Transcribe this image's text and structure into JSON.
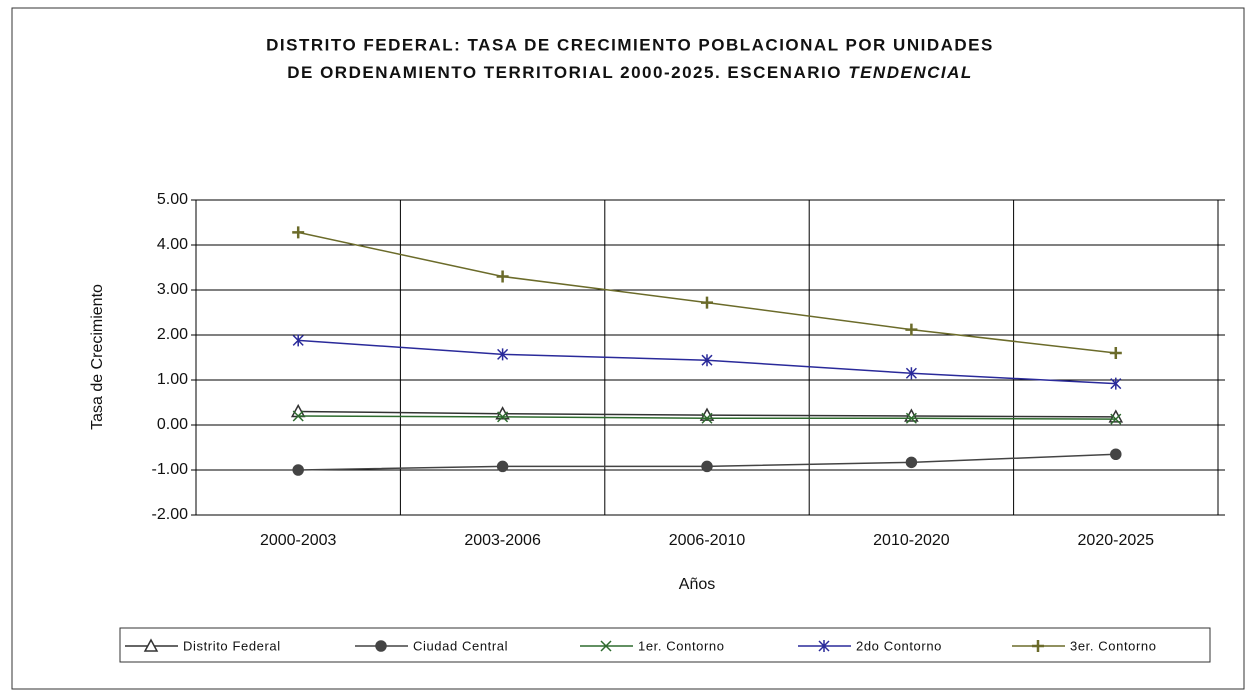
{
  "chart_data": {
    "type": "line",
    "title_lines": [
      "DISTRITO FEDERAL: TASA DE  CRECIMIENTO POBLACIONAL POR UNIDADES",
      "DE ORDENAMIENTO TERRITORIAL  2000-2025. ESCENARIO"
    ],
    "title_italic": "TENDENCIAL",
    "x_label": "Años",
    "y_label": "Tasa de Crecimiento",
    "categories": [
      "2000-2003",
      "2003-2006",
      "2006-2010",
      "2010-2020",
      "2020-2025"
    ],
    "ylim": [
      -2,
      5
    ],
    "yticks": [
      {
        "value": 5,
        "label": "5.00"
      },
      {
        "value": 4,
        "label": "4.00"
      },
      {
        "value": 3,
        "label": "3.00"
      },
      {
        "value": 2,
        "label": "2.00"
      },
      {
        "value": 1,
        "label": "1.00"
      },
      {
        "value": 0,
        "label": "0.00"
      },
      {
        "value": -1,
        "label": "-1.00"
      },
      {
        "value": -2,
        "label": "-2.00"
      }
    ],
    "grid": true,
    "series": [
      {
        "name": "Distrito Federal",
        "color": "#333333",
        "marker": "triangle",
        "values": [
          0.3,
          0.25,
          0.22,
          0.2,
          0.18
        ]
      },
      {
        "name": "Ciudad Central",
        "color": "#444444",
        "marker": "circle",
        "values": [
          -1.0,
          -0.92,
          -0.92,
          -0.83,
          -0.65
        ]
      },
      {
        "name": "1er. Contorno",
        "color": "#2e6b2e",
        "marker": "x",
        "values": [
          0.2,
          0.18,
          0.15,
          0.15,
          0.13
        ]
      },
      {
        "name": "2do Contorno",
        "color": "#2a2a9a",
        "marker": "star",
        "values": [
          1.88,
          1.57,
          1.44,
          1.15,
          0.92
        ]
      },
      {
        "name": "3er. Contorno",
        "color": "#6b6b2a",
        "marker": "plus",
        "values": [
          4.28,
          3.3,
          2.72,
          2.12,
          1.6
        ]
      }
    ]
  }
}
